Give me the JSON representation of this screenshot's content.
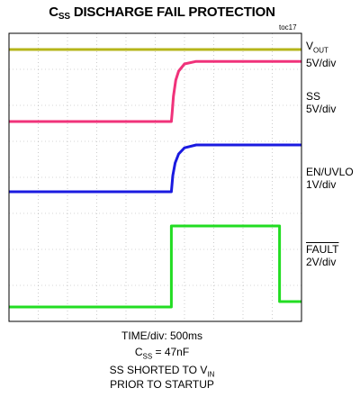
{
  "chart_data": {
    "type": "line",
    "title": {
      "main": "C",
      "sub": "SS",
      "rest": " DISCHARGE FAIL PROTECTION"
    },
    "figure_id": "toc17",
    "x_divisions": 10,
    "y_divisions": 8,
    "time_per_div": "500ms",
    "series": [
      {
        "name": "VOUT",
        "name_main": "V",
        "name_sub": "OUT",
        "scale": "5V/div",
        "color": "#b5b51a",
        "points": [
          [
            0,
            7.55
          ],
          [
            10,
            7.55
          ]
        ]
      },
      {
        "name": "SS",
        "scale": "5V/div",
        "color": "#f0327a",
        "points": [
          [
            0,
            5.55
          ],
          [
            5.55,
            5.55
          ],
          [
            5.58,
            5.8
          ],
          [
            5.62,
            6.25
          ],
          [
            5.7,
            6.7
          ],
          [
            5.8,
            6.95
          ],
          [
            6.0,
            7.15
          ],
          [
            6.4,
            7.22
          ],
          [
            10,
            7.22
          ]
        ]
      },
      {
        "name": "EN/UVLO",
        "scale": "1V/div",
        "color": "#1a1ae0",
        "points": [
          [
            0,
            3.6
          ],
          [
            5.55,
            3.6
          ],
          [
            5.6,
            4.05
          ],
          [
            5.68,
            4.4
          ],
          [
            5.8,
            4.65
          ],
          [
            6.0,
            4.82
          ],
          [
            6.4,
            4.9
          ],
          [
            10,
            4.9
          ]
        ]
      },
      {
        "name": "FAULT",
        "scale": "2V/div",
        "color": "#22dd22",
        "points": [
          [
            0,
            0.4
          ],
          [
            5.55,
            0.4
          ],
          [
            5.55,
            2.65
          ],
          [
            9.25,
            2.65
          ],
          [
            9.25,
            0.55
          ],
          [
            10,
            0.55
          ]
        ]
      }
    ]
  },
  "labels": {
    "vout_main": "V",
    "vout_sub": "OUT",
    "vout_scale": "5V/div",
    "ss_name": "SS",
    "ss_scale": "5V/div",
    "en_name": "EN/UVLO",
    "en_scale": "1V/div",
    "fault_name": "FAULT",
    "fault_scale": "2V/div"
  },
  "caption": {
    "line1": "TIME/div: 500ms",
    "line2_main": "C",
    "line2_sub": "SS",
    "line2_rest": " = 47nF",
    "line3_main": "SS SHORTED TO V",
    "line3_sub": "IN",
    "line4": "PRIOR TO STARTUP"
  }
}
